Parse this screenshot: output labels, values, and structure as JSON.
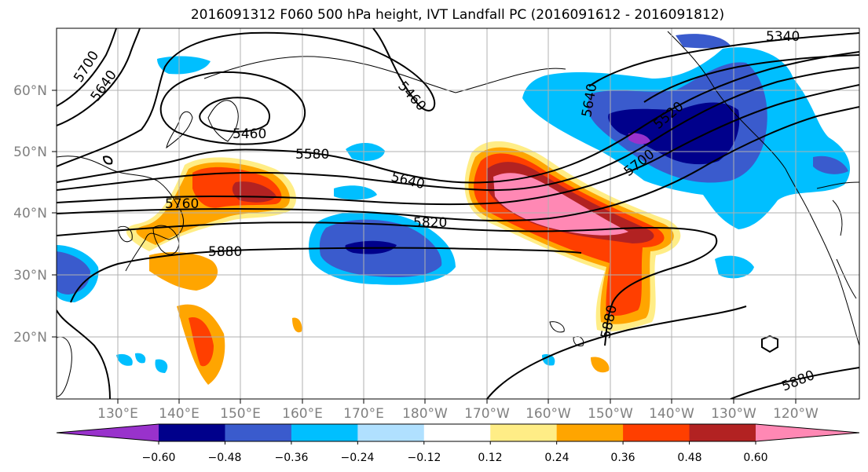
{
  "title": "2016091312 F060 500 hPa height, IVT Landfall PC (2016091612 - 2016091812)",
  "map": {
    "lat_labels": [
      "60°N",
      "50°N",
      "40°N",
      "30°N",
      "20°N"
    ],
    "lon_labels": [
      "130°E",
      "140°E",
      "150°E",
      "160°E",
      "170°E",
      "180°W",
      "170°W",
      "160°W",
      "150°W",
      "140°W",
      "130°W",
      "120°W"
    ],
    "contour_labels": [
      "5700",
      "5640",
      "5460",
      "5460",
      "5580",
      "5640",
      "5760",
      "5820",
      "5880",
      "5340",
      "5640",
      "5520",
      "5700",
      "5880",
      "5880"
    ],
    "label_color": "#808080"
  },
  "colorbar": {
    "ticks": [
      "−0.60",
      "−0.48",
      "−0.36",
      "−0.24",
      "−0.12",
      "0.12",
      "0.24",
      "0.36",
      "0.48",
      "0.60"
    ],
    "colors": [
      "#9932cc",
      "#00008b",
      "#3a5bcd",
      "#00bfff",
      "#b0e0ff",
      "#ffffff",
      "#ffed86",
      "#ffa500",
      "#ff3f00",
      "#b22222",
      "#ff88b4"
    ]
  }
}
